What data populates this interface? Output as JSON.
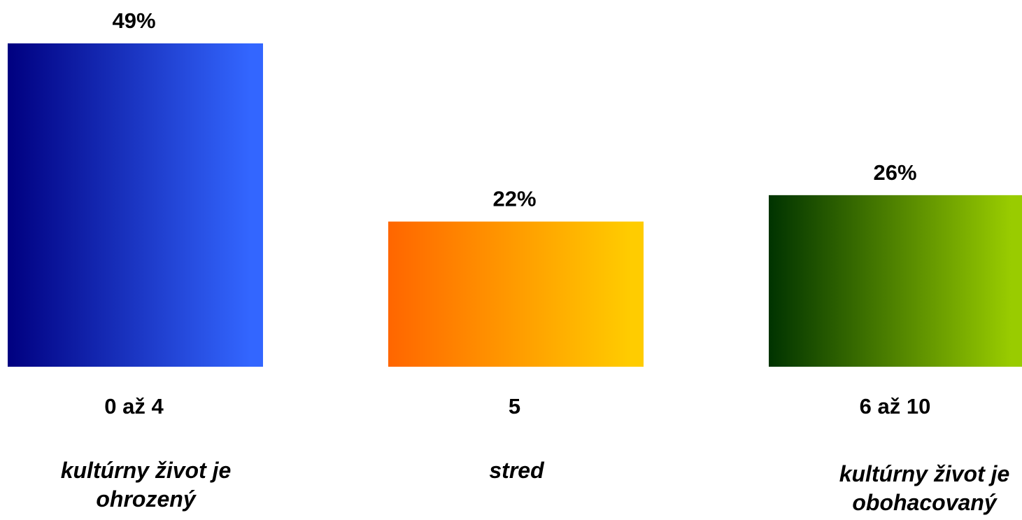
{
  "chart_data": {
    "type": "bar",
    "categories": [
      "0 až 4",
      "5",
      "6 až 10"
    ],
    "values": [
      49,
      22,
      26
    ],
    "value_labels": [
      "49%",
      "22%",
      "26%"
    ],
    "descriptions": [
      [
        "kultúrny život je",
        "ohrozený"
      ],
      [
        "stred"
      ],
      [
        "kultúrny život je",
        "obohacovaný"
      ]
    ],
    "ylim": [
      0,
      49
    ],
    "grid": false,
    "bar_gradients": [
      {
        "from": "#000080",
        "to": "#3366FF"
      },
      {
        "from": "#FF6600",
        "to": "#FFCC00"
      },
      {
        "from": "#003300",
        "to": "#99CC00"
      }
    ]
  }
}
